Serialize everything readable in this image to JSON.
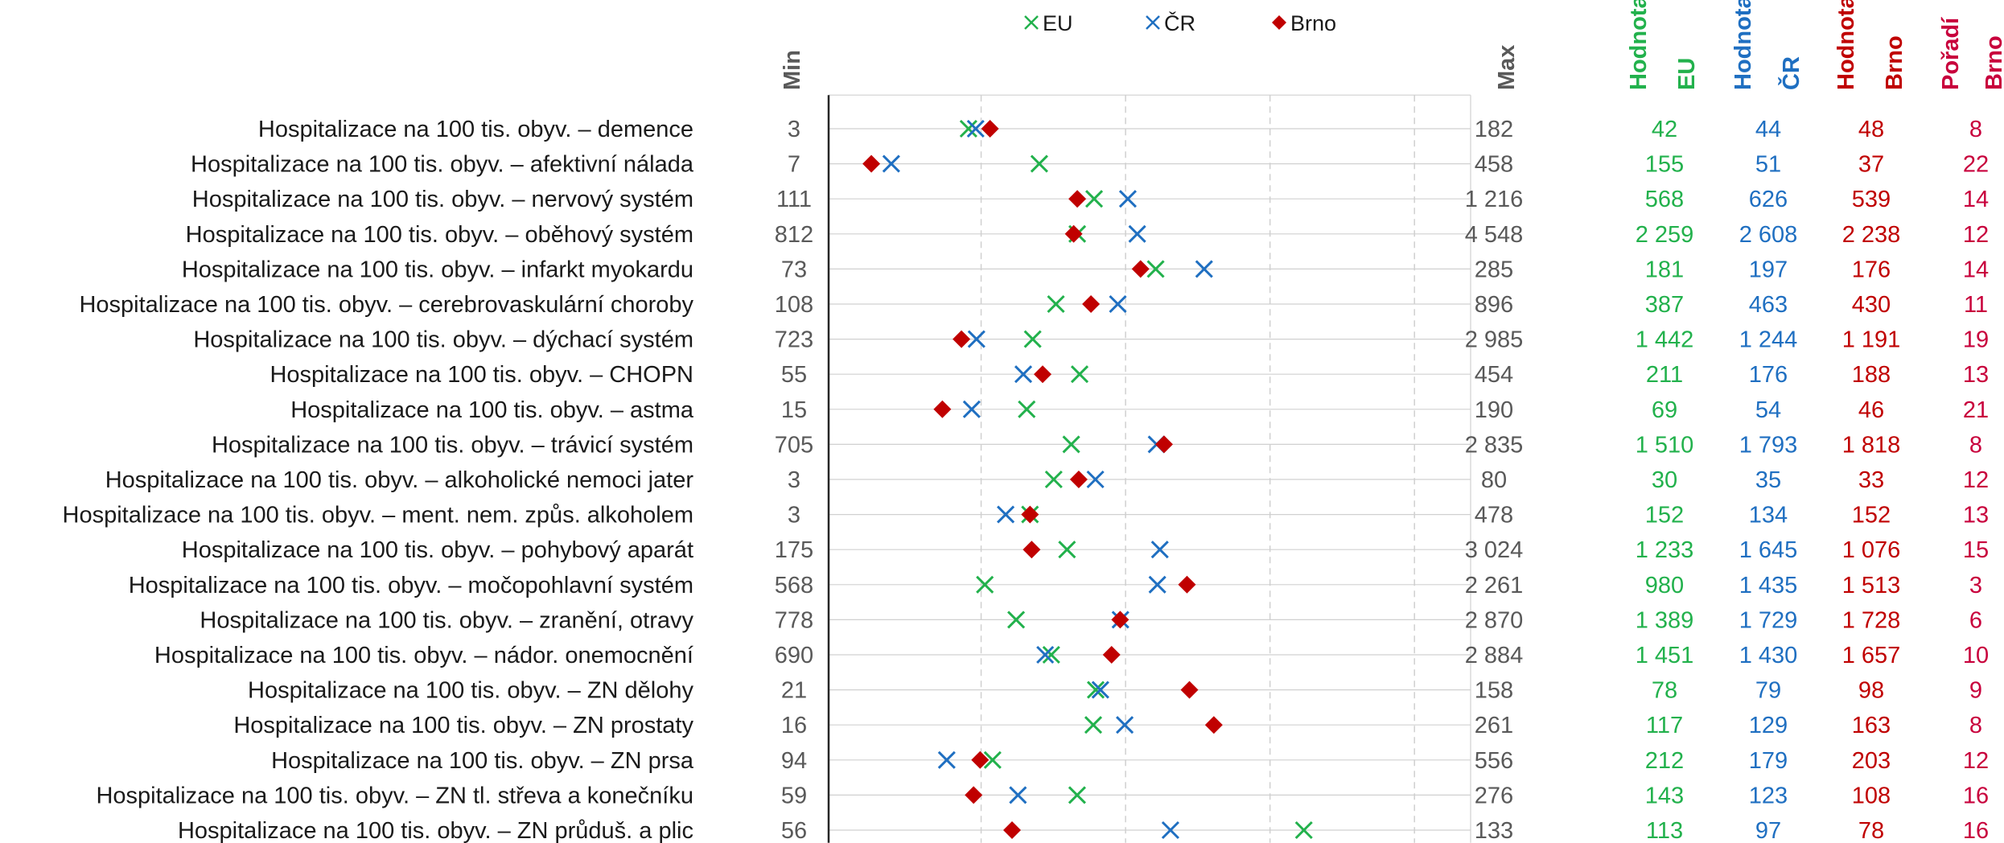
{
  "chart_data": {
    "type": "scatter",
    "legend": {
      "position": "top",
      "items": [
        {
          "name": "EU",
          "marker": "x",
          "color": "#22b14c"
        },
        {
          "name": "ČR",
          "marker": "x",
          "color": "#1f6fc1"
        },
        {
          "name": "Brno",
          "marker": "diamond",
          "color": "#c00000"
        }
      ]
    },
    "headers": {
      "min": "Min",
      "max": "Max",
      "eu_line1": "Hodnota",
      "eu_line2": "EU",
      "cr_line1": "Hodnota",
      "cr_line2": "ČR",
      "brno_line1": "Hodnota",
      "brno_line2": "Brno",
      "rank_line1": "Pořadí",
      "rank_line2": "Brno"
    },
    "colors": {
      "eu": "#22b14c",
      "cr": "#1f6fc1",
      "brno": "#c00000",
      "rank": "#c8003c",
      "grid": "#d0d0d0",
      "axis": "#262626"
    },
    "grid": true,
    "rows": [
      {
        "label": "Hospitalizace na 100 tis. obyv. – demence",
        "min": 3,
        "min_text": "3",
        "max": 182,
        "max_text": "182",
        "eu": 42,
        "eu_text": "42",
        "cr": 44,
        "cr_text": "44",
        "brno": 48,
        "brno_text": "48",
        "rank": "8"
      },
      {
        "label": "Hospitalizace na 100 tis. obyv. – afektivní nálada",
        "min": 7,
        "min_text": "7",
        "max": 458,
        "max_text": "458",
        "eu": 155,
        "eu_text": "155",
        "cr": 51,
        "cr_text": "51",
        "brno": 37,
        "brno_text": "37",
        "rank": "22"
      },
      {
        "label": "Hospitalizace na 100 tis. obyv. – nervový systém",
        "min": 111,
        "min_text": "111",
        "max": 1216,
        "max_text": "1 216",
        "eu": 568,
        "eu_text": "568",
        "cr": 626,
        "cr_text": "626",
        "brno": 539,
        "brno_text": "539",
        "rank": "14"
      },
      {
        "label": "Hospitalizace na 100 tis. obyv. – oběhový systém",
        "min": 812,
        "min_text": "812",
        "max": 4548,
        "max_text": "4 548",
        "eu": 2259,
        "eu_text": "2 259",
        "cr": 2608,
        "cr_text": "2 608",
        "brno": 2238,
        "brno_text": "2 238",
        "rank": "12"
      },
      {
        "label": "Hospitalizace na 100 tis. obyv. – infarkt myokardu",
        "min": 73,
        "min_text": "73",
        "max": 285,
        "max_text": "285",
        "eu": 181,
        "eu_text": "181",
        "cr": 197,
        "cr_text": "197",
        "brno": 176,
        "brno_text": "176",
        "rank": "14"
      },
      {
        "label": "Hospitalizace na 100 tis. obyv. – cerebrovaskulární choroby",
        "min": 108,
        "min_text": "108",
        "max": 896,
        "max_text": "896",
        "eu": 387,
        "eu_text": "387",
        "cr": 463,
        "cr_text": "463",
        "brno": 430,
        "brno_text": "430",
        "rank": "11"
      },
      {
        "label": "Hospitalizace na 100 tis. obyv. – dýchací systém",
        "min": 723,
        "min_text": "723",
        "max": 2985,
        "max_text": "2 985",
        "eu": 1442,
        "eu_text": "1 442",
        "cr": 1244,
        "cr_text": "1 244",
        "brno": 1191,
        "brno_text": "1 191",
        "rank": "19"
      },
      {
        "label": "Hospitalizace na 100 tis. obyv. – CHOPN",
        "min": 55,
        "min_text": "55",
        "max": 454,
        "max_text": "454",
        "eu": 211,
        "eu_text": "211",
        "cr": 176,
        "cr_text": "176",
        "brno": 188,
        "brno_text": "188",
        "rank": "13"
      },
      {
        "label": "Hospitalizace na 100 tis. obyv. – astma",
        "min": 15,
        "min_text": "15",
        "max": 190,
        "max_text": "190",
        "eu": 69,
        "eu_text": "69",
        "cr": 54,
        "cr_text": "54",
        "brno": 46,
        "brno_text": "46",
        "rank": "21"
      },
      {
        "label": "Hospitalizace na 100 tis. obyv. – trávicí systém",
        "min": 705,
        "min_text": "705",
        "max": 2835,
        "max_text": "2 835",
        "eu": 1510,
        "eu_text": "1 510",
        "cr": 1793,
        "cr_text": "1 793",
        "brno": 1818,
        "brno_text": "1 818",
        "rank": "8"
      },
      {
        "label": "Hospitalizace na 100 tis. obyv. – alkoholické nemoci jater",
        "min": 3,
        "min_text": "3",
        "max": 80,
        "max_text": "80",
        "eu": 30,
        "eu_text": "30",
        "cr": 35,
        "cr_text": "35",
        "brno": 33,
        "brno_text": "33",
        "rank": "12"
      },
      {
        "label": "Hospitalizace na 100 tis. obyv. – ment. nem. způs. alkoholem",
        "min": 3,
        "min_text": "3",
        "max": 478,
        "max_text": "478",
        "eu": 152,
        "eu_text": "152",
        "cr": 134,
        "cr_text": "134",
        "brno": 152,
        "brno_text": "152",
        "rank": "13"
      },
      {
        "label": "Hospitalizace na 100 tis. obyv. – pohybový aparát",
        "min": 175,
        "min_text": "175",
        "max": 3024,
        "max_text": "3 024",
        "eu": 1233,
        "eu_text": "1 233",
        "cr": 1645,
        "cr_text": "1 645",
        "brno": 1076,
        "brno_text": "1 076",
        "rank": "15"
      },
      {
        "label": "Hospitalizace na 100 tis. obyv. – močopohlavní systém",
        "min": 568,
        "min_text": "568",
        "max": 2261,
        "max_text": "2 261",
        "eu": 980,
        "eu_text": "980",
        "cr": 1435,
        "cr_text": "1 435",
        "brno": 1513,
        "brno_text": "1 513",
        "rank": "3"
      },
      {
        "label": "Hospitalizace na 100 tis. obyv. – zranění, otravy",
        "min": 778,
        "min_text": "778",
        "max": 2870,
        "max_text": "2 870",
        "eu": 1389,
        "eu_text": "1 389",
        "cr": 1729,
        "cr_text": "1 729",
        "brno": 1728,
        "brno_text": "1 728",
        "rank": "6"
      },
      {
        "label": "Hospitalizace na 100 tis. obyv. – nádor. onemocnění",
        "min": 690,
        "min_text": "690",
        "max": 2884,
        "max_text": "2 884",
        "eu": 1451,
        "eu_text": "1 451",
        "cr": 1430,
        "cr_text": "1 430",
        "brno": 1657,
        "brno_text": "1 657",
        "rank": "10"
      },
      {
        "label": "Hospitalizace na 100 tis. obyv. – ZN dělohy",
        "min": 21,
        "min_text": "21",
        "max": 158,
        "max_text": "158",
        "eu": 78,
        "eu_text": "78",
        "cr": 79,
        "cr_text": "79",
        "brno": 98,
        "brno_text": "98",
        "rank": "9"
      },
      {
        "label": "Hospitalizace na 100 tis. obyv. – ZN prostaty",
        "min": 16,
        "min_text": "16",
        "max": 261,
        "max_text": "261",
        "eu": 117,
        "eu_text": "117",
        "cr": 129,
        "cr_text": "129",
        "brno": 163,
        "brno_text": "163",
        "rank": "8"
      },
      {
        "label": "Hospitalizace na 100 tis. obyv. – ZN prsa",
        "min": 94,
        "min_text": "94",
        "max": 556,
        "max_text": "556",
        "eu": 212,
        "eu_text": "212",
        "cr": 179,
        "cr_text": "179",
        "brno": 203,
        "brno_text": "203",
        "rank": "12"
      },
      {
        "label": "Hospitalizace na 100 tis. obyv. – ZN tl. střeva a konečníku",
        "min": 59,
        "min_text": "59",
        "max": 276,
        "max_text": "276",
        "eu": 143,
        "eu_text": "143",
        "cr": 123,
        "cr_text": "123",
        "brno": 108,
        "brno_text": "108",
        "rank": "16"
      },
      {
        "label": "Hospitalizace na 100 tis. obyv. – ZN průduš. a plic",
        "min": 56,
        "min_text": "56",
        "max": 133,
        "max_text": "133",
        "eu": 113,
        "eu_text": "113",
        "cr": 97,
        "cr_text": "97",
        "brno": 78,
        "brno_text": "78",
        "rank": "16"
      }
    ]
  }
}
